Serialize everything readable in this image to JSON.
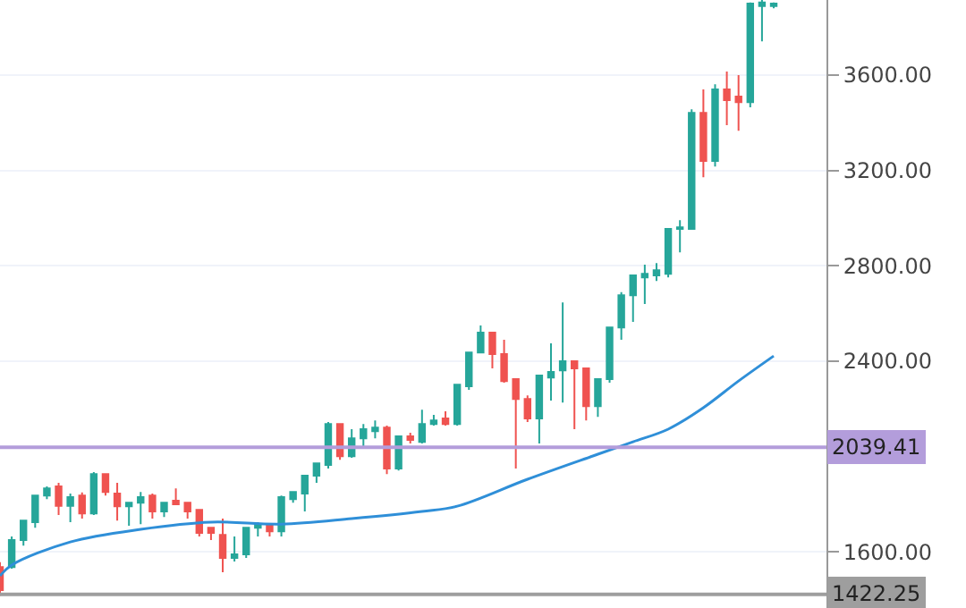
{
  "chart_data": {
    "type": "candlestick",
    "categories": [
      null,
      null,
      null,
      null,
      null,
      null,
      null,
      null,
      null,
      null,
      null,
      null,
      null,
      null,
      null,
      null,
      null,
      null,
      null,
      null,
      null,
      null,
      null,
      null,
      null,
      null,
      null,
      null,
      null,
      null,
      null,
      null,
      null,
      null,
      null,
      null,
      null,
      null,
      null,
      null,
      null,
      null,
      null,
      null,
      null,
      null,
      null,
      null,
      null,
      null,
      null,
      null,
      null,
      null,
      null,
      null,
      null,
      null,
      null,
      null,
      null,
      null,
      null,
      null,
      null,
      null,
      null
    ],
    "series": [
      {
        "ohlc": [
          [
            1537,
            1557,
            1417,
            1440
          ],
          [
            1537,
            1665,
            1530,
            1650
          ],
          [
            1650,
            1732,
            1627,
            1732
          ],
          [
            1725,
            1837,
            1702,
            1837
          ],
          [
            1837,
            1875,
            1822,
            1867
          ],
          [
            1875,
            1890,
            1755,
            1793
          ],
          [
            1793,
            1845,
            1725,
            1830
          ],
          [
            1837,
            1850,
            1740,
            1762
          ],
          [
            1762,
            1935,
            1755,
            1927
          ],
          [
            1927,
            1927,
            1837,
            1852
          ],
          [
            1845,
            1890,
            1732,
            1792
          ],
          [
            1792,
            1807,
            1710,
            1807
          ],
          [
            1807,
            1852,
            1717,
            1830
          ],
          [
            1837,
            1845,
            1740,
            1770
          ],
          [
            1770,
            1807,
            1747,
            1807
          ],
          [
            1815,
            1867,
            1800,
            1800
          ],
          [
            1807,
            1807,
            1740,
            1770
          ],
          [
            1777,
            1777,
            1665,
            1680
          ],
          [
            1702,
            1702,
            1650,
            1680
          ],
          [
            1672,
            1740,
            1515,
            1575
          ],
          [
            1575,
            1665,
            1560,
            1590
          ],
          [
            1590,
            1702,
            1575,
            1702
          ],
          [
            1702,
            1725,
            1665,
            1717
          ],
          [
            1717,
            1717,
            1665,
            1687
          ],
          [
            1687,
            1837,
            1665,
            1830
          ],
          [
            1822,
            1852,
            1807,
            1852
          ],
          [
            1845,
            1920,
            1770,
            1920
          ],
          [
            1920,
            1972,
            1890,
            1972
          ],
          [
            1965,
            2145,
            1950,
            2137
          ],
          [
            2137,
            2137,
            1987,
            2002
          ],
          [
            2002,
            2115,
            1995,
            2077
          ],
          [
            2077,
            2137,
            2040,
            2115
          ],
          [
            2107,
            2152,
            2077,
            2122
          ],
          [
            2122,
            2130,
            1927,
            1950
          ],
          [
            1950,
            2085,
            1942,
            2085
          ],
          [
            2085,
            2100,
            2055,
            2070
          ],
          [
            2062,
            2197,
            2055,
            2137
          ],
          [
            2137,
            2175,
            2130,
            2152
          ],
          [
            2160,
            2190,
            2130,
            2137
          ],
          [
            2137,
            2302,
            2130,
            2302
          ],
          [
            2295,
            2437,
            2280,
            2437
          ],
          [
            2437,
            2550,
            2437,
            2520
          ],
          [
            2520,
            2520,
            2370,
            2430
          ],
          [
            2430,
            2490,
            2310,
            2317
          ],
          [
            2325,
            2325,
            1950,
            2242
          ],
          [
            2242,
            2257,
            2145,
            2160
          ],
          [
            2160,
            2340,
            2055,
            2340
          ],
          [
            2332,
            2475,
            2235,
            2355
          ],
          [
            2362,
            2647,
            2227,
            2400
          ],
          [
            2400,
            2400,
            2115,
            2370
          ],
          [
            2370,
            2370,
            2152,
            2212
          ],
          [
            2212,
            2325,
            2167,
            2325
          ],
          [
            2325,
            2542,
            2310,
            2542
          ],
          [
            2542,
            2690,
            2490,
            2677
          ],
          [
            2677,
            2760,
            2565,
            2760
          ],
          [
            2752,
            2805,
            2640,
            2767
          ],
          [
            2760,
            2812,
            2737,
            2782
          ],
          [
            2767,
            2955,
            2752,
            2955
          ],
          [
            2955,
            2992,
            2857,
            2962
          ],
          [
            2955,
            3457,
            2955,
            3442
          ],
          [
            3442,
            3540,
            3172,
            3240
          ],
          [
            3240,
            3562,
            3217,
            3540
          ],
          [
            3540,
            3615,
            3390,
            3495
          ],
          [
            3510,
            3600,
            3367,
            3487
          ],
          [
            3487,
            3905,
            3465,
            3900
          ],
          [
            3890,
            3915,
            3742,
            3905
          ],
          [
            3890,
            3905,
            3880,
            3900
          ]
        ],
        "colors": [
          "#ef5350",
          "#26a69a",
          "#26a69a",
          "#26a69a",
          "#26a69a",
          "#ef5350",
          "#26a69a",
          "#ef5350",
          "#26a69a",
          "#ef5350",
          "#ef5350",
          "#26a69a",
          "#26a69a",
          "#ef5350",
          "#26a69a",
          "#ef5350",
          "#ef5350",
          "#ef5350",
          "#ef5350",
          "#ef5350",
          "#26a69a",
          "#26a69a",
          "#26a69a",
          "#ef5350",
          "#26a69a",
          "#26a69a",
          "#26a69a",
          "#26a69a",
          "#26a69a",
          "#ef5350",
          "#26a69a",
          "#26a69a",
          "#26a69a",
          "#ef5350",
          "#26a69a",
          "#ef5350",
          "#26a69a",
          "#26a69a",
          "#ef5350",
          "#26a69a",
          "#26a69a",
          "#26a69a",
          "#ef5350",
          "#ef5350",
          "#ef5350",
          "#ef5350",
          "#26a69a",
          "#26a69a",
          "#26a69a",
          "#ef5350",
          "#ef5350",
          "#26a69a",
          "#26a69a",
          "#26a69a",
          "#26a69a",
          "#26a69a",
          "#26a69a",
          "#26a69a",
          "#26a69a",
          "#26a69a",
          "#ef5350",
          "#26a69a",
          "#ef5350",
          "#ef5350",
          "#26a69a",
          "#26a69a",
          "#26a69a"
        ]
      },
      {
        "type": "line",
        "color": "#2f8fd8",
        "values": [
          1500,
          1545,
          null,
          null,
          null,
          null,
          1642,
          null,
          null,
          null,
          null,
          null,
          1695,
          null,
          null,
          null,
          null,
          null,
          1725,
          null,
          null,
          null,
          null,
          null,
          1717,
          null,
          null,
          null,
          null,
          null,
          1740,
          null,
          null,
          null,
          null,
          null,
          1770,
          null,
          null,
          1792,
          null,
          null,
          null,
          null,
          null,
          1905,
          null,
          null,
          null,
          null,
          null,
          2010,
          null,
          null,
          2062,
          null,
          null,
          2115,
          null,
          null,
          2205,
          null,
          null,
          2317,
          null,
          null,
          2422
        ]
      }
    ],
    "ylim": [
      1365,
      3915
    ],
    "yticks": [
      {
        "value": 1600,
        "label": "1600.00"
      },
      {
        "value": 2400,
        "label": "2400.00"
      },
      {
        "value": 2800,
        "label": "2800.00"
      },
      {
        "value": 3200,
        "label": "3200.00"
      },
      {
        "value": 3600,
        "label": "3600.00"
      }
    ],
    "ref_lines": [
      {
        "axis": "y",
        "value": 2039.41,
        "label": "2039.41",
        "color": "#b39ddb"
      },
      {
        "axis": "y",
        "value": 1422.25,
        "label": "1422.25",
        "color": "#9e9e9e"
      }
    ],
    "grid": "y",
    "line_style": "solid",
    "marker": "none"
  }
}
